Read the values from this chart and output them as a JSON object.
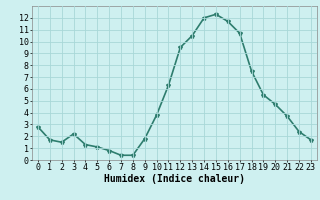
{
  "x": [
    0,
    1,
    2,
    3,
    4,
    5,
    6,
    7,
    8,
    9,
    10,
    11,
    12,
    13,
    14,
    15,
    16,
    17,
    18,
    19,
    20,
    21,
    22,
    23
  ],
  "y": [
    2.8,
    1.7,
    1.5,
    2.2,
    1.3,
    1.1,
    0.8,
    0.4,
    0.4,
    1.8,
    3.8,
    6.3,
    9.5,
    10.5,
    12.0,
    12.3,
    11.7,
    10.7,
    7.5,
    5.5,
    4.7,
    3.7,
    2.4,
    1.7
  ],
  "line_color": "#2e7d6e",
  "marker": "*",
  "marker_size": 3,
  "bg_color": "#cef0f0",
  "grid_color": "#a8d8d8",
  "xlabel": "Humidex (Indice chaleur)",
  "xlim": [
    -0.5,
    23.5
  ],
  "ylim": [
    0,
    13
  ],
  "yticks": [
    0,
    1,
    2,
    3,
    4,
    5,
    6,
    7,
    8,
    9,
    10,
    11,
    12
  ],
  "xticks": [
    0,
    1,
    2,
    3,
    4,
    5,
    6,
    7,
    8,
    9,
    10,
    11,
    12,
    13,
    14,
    15,
    16,
    17,
    18,
    19,
    20,
    21,
    22,
    23
  ],
  "xlabel_fontsize": 7,
  "tick_fontsize": 6,
  "linewidth": 1.2
}
